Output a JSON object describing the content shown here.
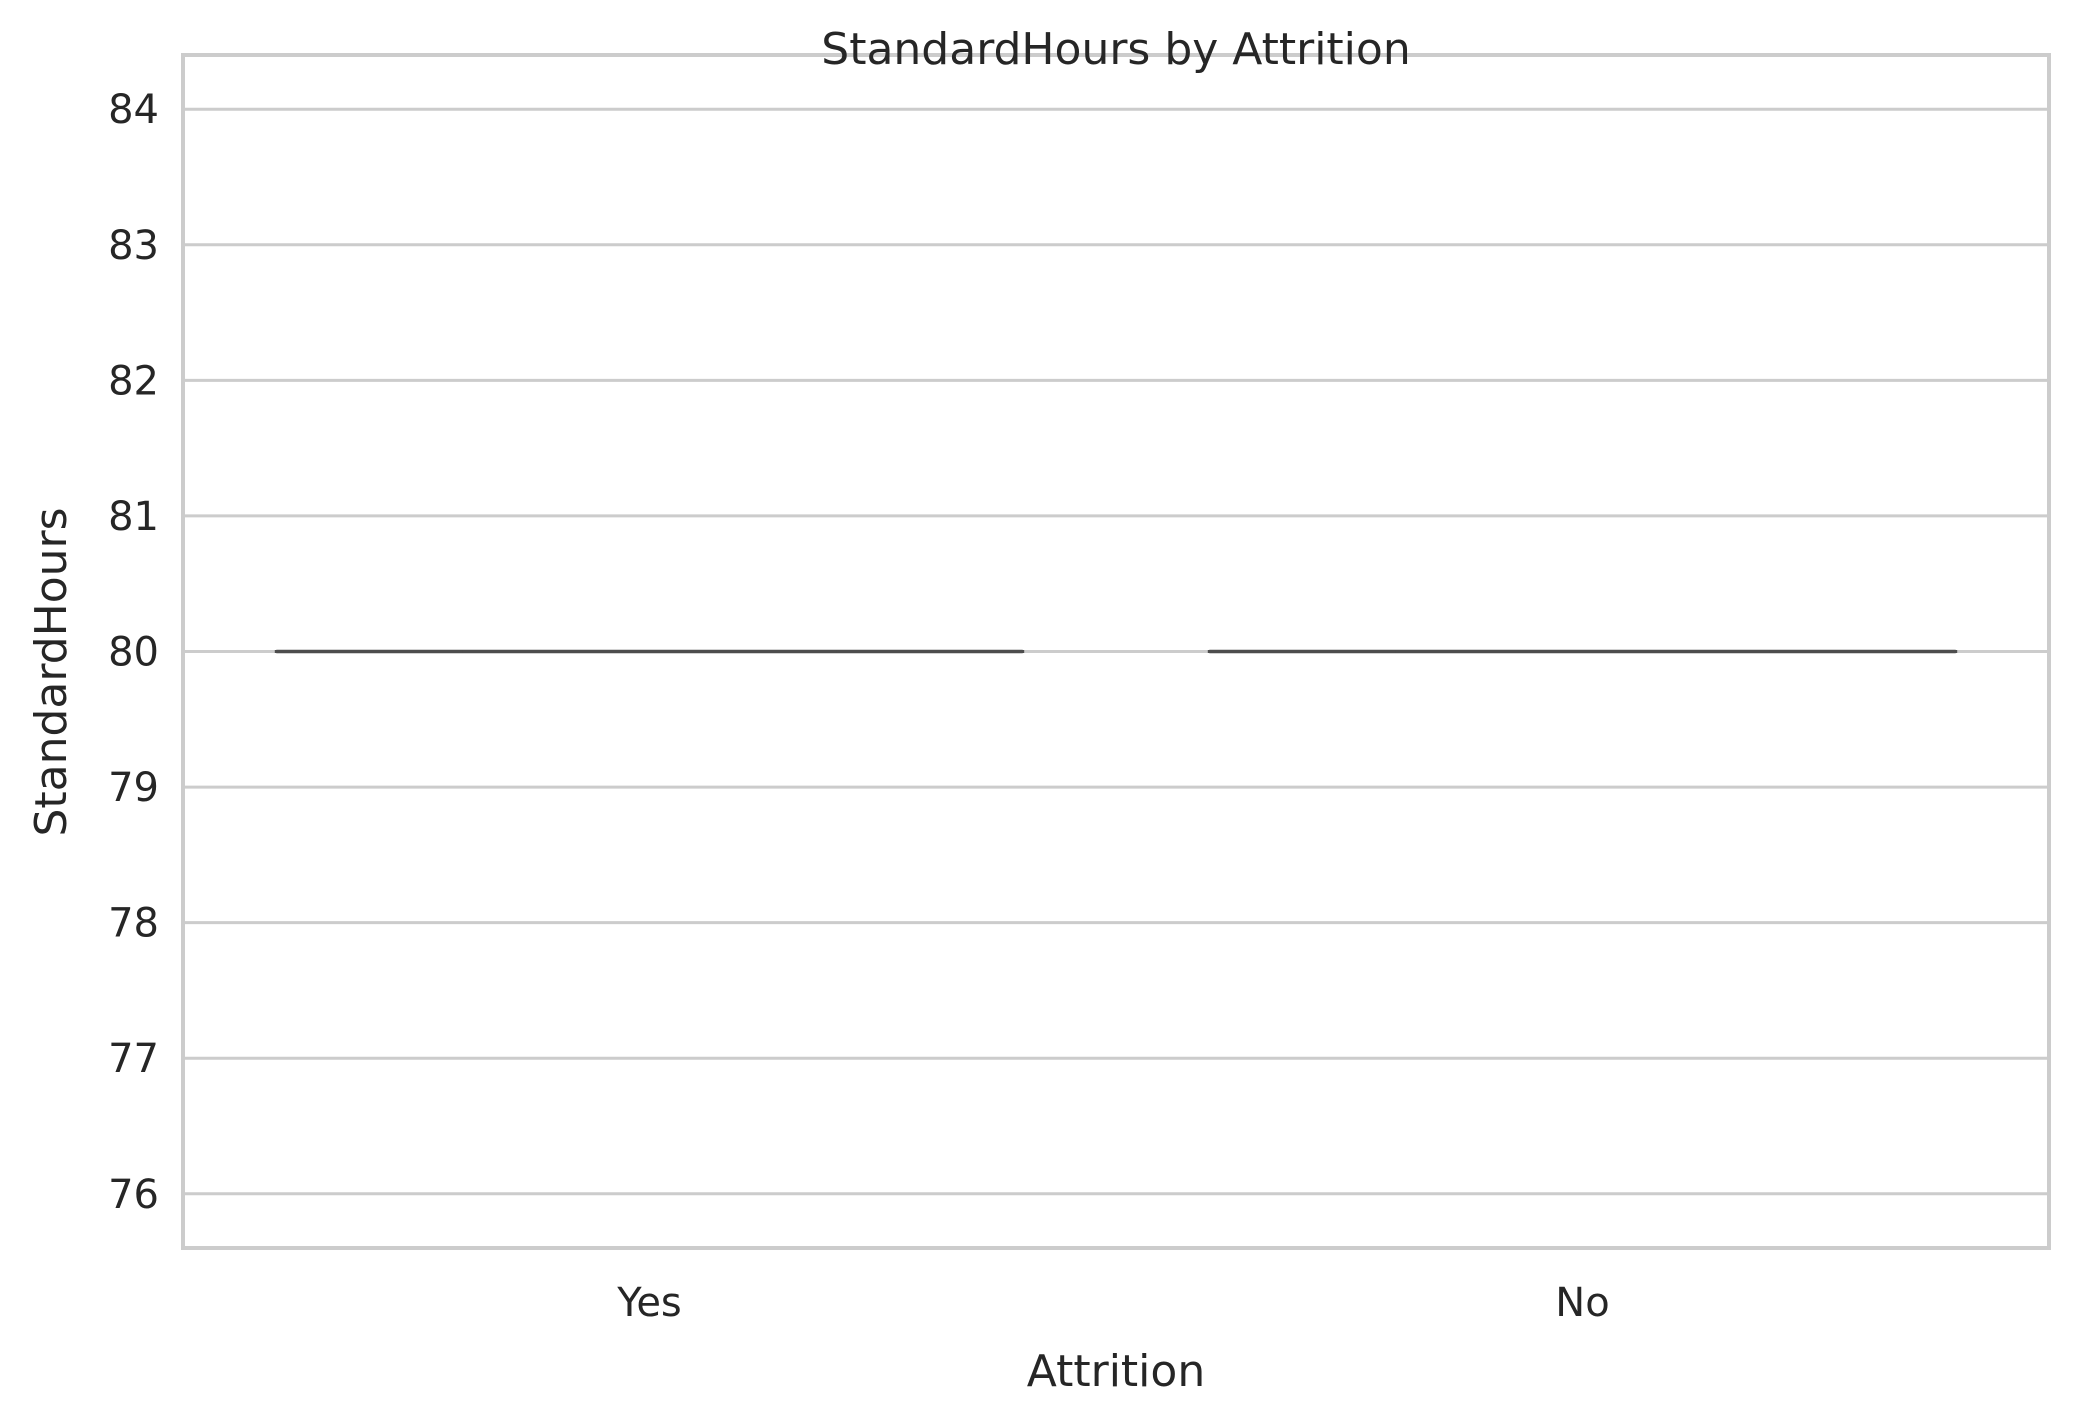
{
  "chart_data": {
    "type": "box",
    "title": "StandardHours by Attrition",
    "xlabel": "Attrition",
    "ylabel": "StandardHours",
    "categories": [
      "Yes",
      "No"
    ],
    "boxes": [
      {
        "category": "Yes",
        "min": 80,
        "q1": 80,
        "median": 80,
        "q3": 80,
        "max": 80
      },
      {
        "category": "No",
        "min": 80,
        "q1": 80,
        "median": 80,
        "q3": 80,
        "max": 80
      }
    ],
    "ylim": [
      75.6,
      84.4
    ],
    "yticks": [
      76,
      77,
      78,
      79,
      80,
      81,
      82,
      83,
      84
    ],
    "grid": true,
    "colors": {
      "grid": "#cccccc",
      "frame": "#cccccc",
      "box_line": "#4d4d4d",
      "text": "#262626"
    }
  }
}
